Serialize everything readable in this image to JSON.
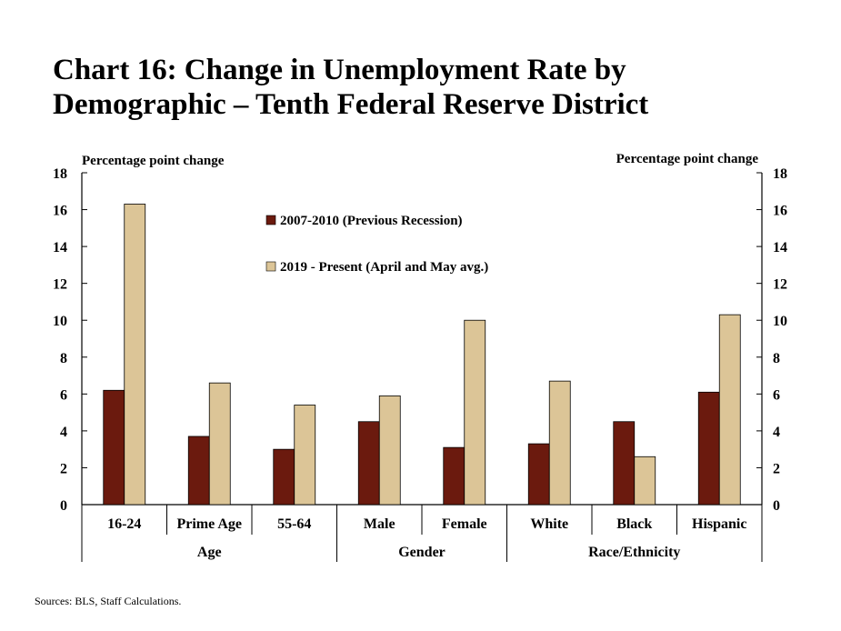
{
  "title": "Chart 16: Change in Unemployment Rate by Demographic – Tenth Federal Reserve District",
  "source": "Sources: BLS, Staff Calculations.",
  "chart_data": {
    "type": "bar",
    "ylabel_left": "Percentage point change",
    "ylabel_right": "Percentage point change",
    "ylim": [
      0,
      18
    ],
    "yticks": [
      0,
      2,
      4,
      6,
      8,
      10,
      12,
      14,
      16,
      18
    ],
    "legend_position": "upper-center",
    "categories": [
      "16-24",
      "Prime Age",
      "55-64",
      "Male",
      "Female",
      "White",
      "Black",
      "Hispanic"
    ],
    "groups": [
      {
        "label": "Age",
        "categories": [
          "16-24",
          "Prime Age",
          "55-64"
        ]
      },
      {
        "label": "Gender",
        "categories": [
          "Male",
          "Female"
        ]
      },
      {
        "label": "Race/Ethnicity",
        "categories": [
          "White",
          "Black",
          "Hispanic"
        ]
      }
    ],
    "series": [
      {
        "name": "2007-2010 (Previous Recession)",
        "color": "#6b1a0e",
        "values": [
          6.2,
          3.7,
          3.0,
          4.5,
          3.1,
          3.3,
          4.5,
          6.1
        ]
      },
      {
        "name": "2019 - Present (April and May avg.)",
        "color": "#dcc597",
        "values": [
          16.3,
          6.6,
          5.4,
          5.9,
          10.0,
          6.7,
          2.6,
          10.3
        ]
      }
    ]
  }
}
